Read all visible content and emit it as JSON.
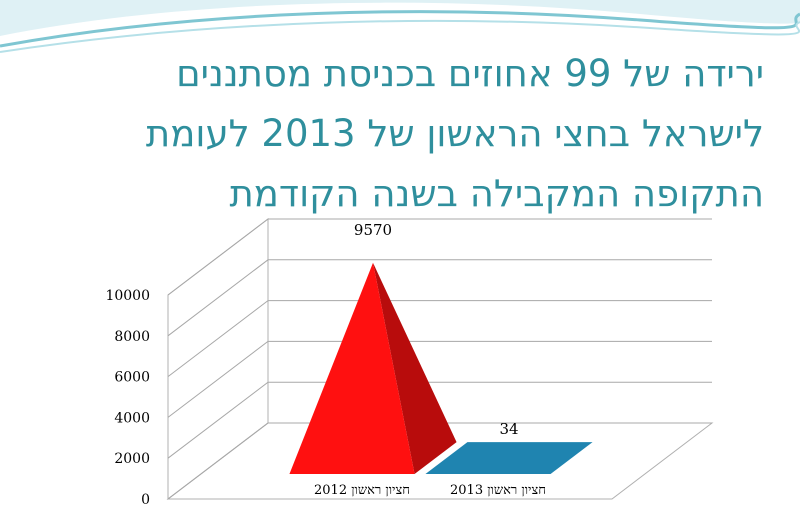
{
  "slide": {
    "title_lines": [
      "ירידה של 99 אחוזים בכניסת מסתננים",
      "לישראל בחצי הראשון של 2013 לעומת",
      "התקופה המקבילה בשנה הקודמת"
    ]
  },
  "colors": {
    "title": "#2f8f9d",
    "swoosh": "#7fc6d2",
    "series_2012": "#ff1010",
    "series_2013": "#1f84b0"
  },
  "chart_data": {
    "type": "bar",
    "style": "3d-pyramid",
    "title": "",
    "xlabel": "",
    "ylabel": "",
    "categories": [
      "חציון ראשון 2012",
      "חציון ראשון 2013"
    ],
    "values": [
      9570,
      34
    ],
    "data_labels": [
      "9570",
      "34"
    ],
    "y_ticks": [
      "0",
      "2000",
      "4000",
      "6000",
      "8000",
      "10000"
    ],
    "ylim": [
      0,
      10000
    ],
    "grid": true,
    "legend": "none"
  }
}
